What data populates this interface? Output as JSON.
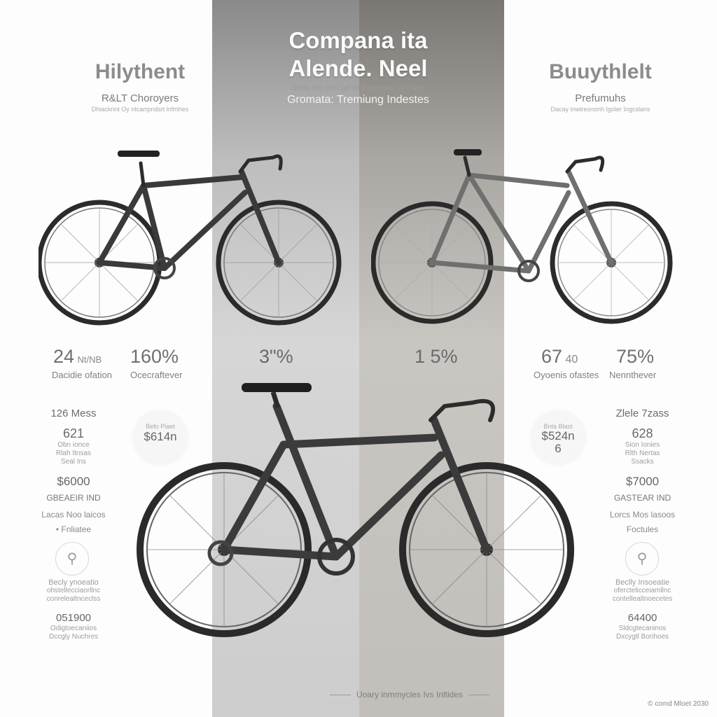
{
  "header": {
    "title_line1": "Compana ita",
    "title_line2": "Alende. Neel",
    "faint_sub": "Sterc nnl pkrl laf el inamenwr afkiaen",
    "subtitle": "Gromata: Tremiung Indestes"
  },
  "left_column": {
    "title": "Hilythent",
    "subtitle": "R&LT Choroyers",
    "tiny": "Dhiacknnt Oy ntcarrpndsrt lnfmhes",
    "stats": [
      {
        "value": "24",
        "unit": "Nt/NB",
        "label": "Dacidie ofation"
      },
      {
        "value": "160%",
        "label": "Ocecraftever"
      }
    ],
    "spec_heading": "126 Mess",
    "spec_value": "621",
    "spec_sub1": "Obn ionce",
    "spec_sub2": "Rlah Itnsas",
    "spec_sub3": "Seal Ins",
    "circle_small": "Befo Piaet",
    "circle_value": "$614n",
    "price": "$6000",
    "brand": "GBEAEIR IND",
    "brand_sub": "Lacas Noo laicos",
    "feature": "• Fnliatee",
    "detail1": "Becly ynoeatio",
    "detail2": "ohstellecciaorllnc",
    "detail3": "conrelealtnceclss",
    "code": "051900",
    "code_sub1": "Odigtoecaniios",
    "code_sub2": "Dccgly Nuchres"
  },
  "center": {
    "stat_left": "3\"%",
    "stat_right": "1 5%"
  },
  "right_column": {
    "title": "Buuythlelt",
    "subtitle": "Prefumuhs",
    "tiny": "Dacay Inwiresnonh Igoler Ingcslans",
    "stats": [
      {
        "value": "67",
        "unit": "40",
        "label": "Oyoenis ofastes"
      },
      {
        "value": "75%",
        "label": "Nennthever"
      }
    ],
    "spec_heading": "Zlele 7zass",
    "spec_value": "628",
    "spec_sub1": "Sion Ionies",
    "spec_sub2": "Rlth Nertas",
    "spec_sub3": "Ssacks",
    "circle_small": "Bnta Blast",
    "circle_value": "$524n",
    "circle_value2": "6",
    "price": "$7000",
    "brand": "GASTEAR IND",
    "brand_sub": "Lorcs Mos lasoos",
    "feature": "Foctules",
    "detail1": "Beclly Insoeatie",
    "detail2": "oferctelicceiamllnc",
    "detail3": "contellealtnoecetes",
    "code": "64400",
    "code_sub1": "Sldcgtecaninos",
    "code_sub2": "Dxcygtl Borihoes"
  },
  "footer": {
    "caption": "Uoary inmmycles Ivs Inltides",
    "copyright": "© comd Mloet 2030"
  },
  "colors": {
    "band_left": "#bdbdbd",
    "band_right": "#aaa7a3",
    "frame_dark": "#3a3a3a",
    "frame_grey": "#6f6f6f"
  }
}
